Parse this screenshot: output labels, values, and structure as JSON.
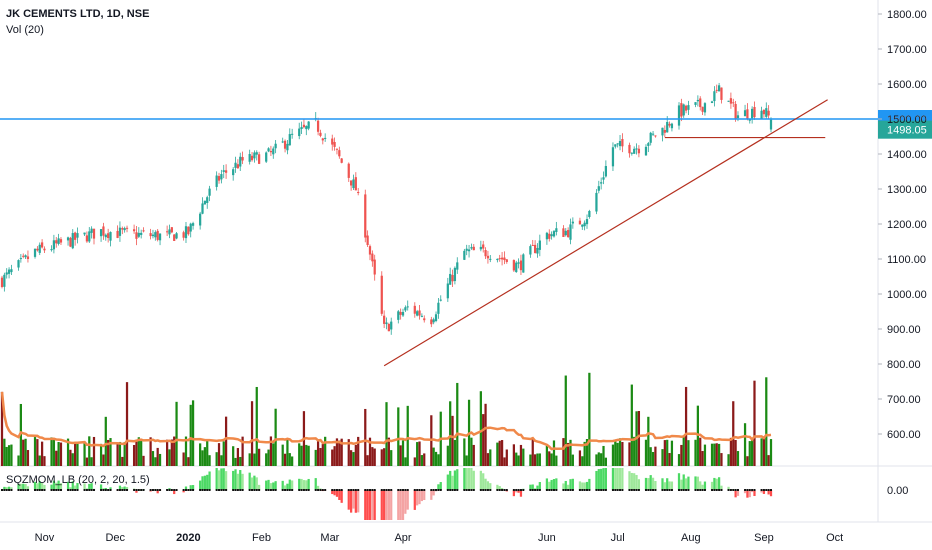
{
  "header": {
    "title": "JK CEMENTS LTD, 1D, NSE",
    "volume_label": "Vol (20)",
    "indicator_label": "SQZMOM_LB (20, 2, 20, 1.5)"
  },
  "colors": {
    "up": "#26a69a",
    "down": "#ef5350",
    "vol_up": "#1b8a14",
    "vol_down": "#8b1a1a",
    "vol_ma": "#f0894a",
    "resistance": "#2196f3",
    "trendline": "#b5301f",
    "mom_pos_strong": "#4cd964",
    "mom_pos_weak": "#9ee89a",
    "mom_neg_strong": "#ff4d4d",
    "mom_neg_weak": "#f4a3a3"
  },
  "chart_data": {
    "type": "candlestick",
    "title": "JK CEMENTS LTD, 1D, NSE",
    "x_labels": [
      "Nov",
      "Dec",
      "2020",
      "Feb",
      "Mar",
      "Apr",
      "Jun",
      "Jul",
      "Aug",
      "Sep",
      "Oct"
    ],
    "y_ticks": [
      "1800.00",
      "1700.00",
      "1600.00",
      "1500.00",
      "1400.00",
      "1300.00",
      "1200.00",
      "1100.00",
      "1000.00",
      "900.00",
      "800.00",
      "700.00",
      "600.00"
    ],
    "ylim": [
      560,
      1820
    ],
    "resistance_level": 1500.0,
    "resistance_label": "1500.00",
    "last_price": 1498.05,
    "last_price_label": "1498.05",
    "trendline": [
      {
        "date": "2020-03-24",
        "price": 795
      },
      {
        "date": "2020-09-28",
        "price": 1555
      }
    ],
    "support_line": {
      "price": 1447,
      "from": "2020-07-21",
      "to": "2020-09-27"
    },
    "price_path": [
      {
        "date": "2019-10-14",
        "close": 1040
      },
      {
        "date": "2019-10-28",
        "close": 1120
      },
      {
        "date": "2019-11-11",
        "close": 1150
      },
      {
        "date": "2019-11-25",
        "close": 1180
      },
      {
        "date": "2019-12-09",
        "close": 1170
      },
      {
        "date": "2019-12-23",
        "close": 1165
      },
      {
        "date": "2020-01-01",
        "close": 1175
      },
      {
        "date": "2020-01-08",
        "close": 1270
      },
      {
        "date": "2020-01-15",
        "close": 1340
      },
      {
        "date": "2020-01-24",
        "close": 1380
      },
      {
        "date": "2020-02-05",
        "close": 1400
      },
      {
        "date": "2020-02-14",
        "close": 1450
      },
      {
        "date": "2020-02-24",
        "close": 1485
      },
      {
        "date": "2020-03-04",
        "close": 1400
      },
      {
        "date": "2020-03-12",
        "close": 1300
      },
      {
        "date": "2020-03-17",
        "close": 1150
      },
      {
        "date": "2020-03-24",
        "close": 900
      },
      {
        "date": "2020-04-03",
        "close": 960
      },
      {
        "date": "2020-04-13",
        "close": 930
      },
      {
        "date": "2020-04-27",
        "close": 1120
      },
      {
        "date": "2020-05-07",
        "close": 1120
      },
      {
        "date": "2020-05-20",
        "close": 1080
      },
      {
        "date": "2020-06-01",
        "close": 1170
      },
      {
        "date": "2020-06-10",
        "close": 1180
      },
      {
        "date": "2020-06-19",
        "close": 1230
      },
      {
        "date": "2020-06-29",
        "close": 1420
      },
      {
        "date": "2020-07-10",
        "close": 1420
      },
      {
        "date": "2020-07-20",
        "close": 1470
      },
      {
        "date": "2020-07-27",
        "close": 1520
      },
      {
        "date": "2020-08-06",
        "close": 1540
      },
      {
        "date": "2020-08-13",
        "close": 1580
      },
      {
        "date": "2020-08-21",
        "close": 1510
      },
      {
        "date": "2020-08-31",
        "close": 1530
      },
      {
        "date": "2020-09-04",
        "close": 1498
      }
    ],
    "momentum_ticks": [
      "0.00"
    ]
  }
}
